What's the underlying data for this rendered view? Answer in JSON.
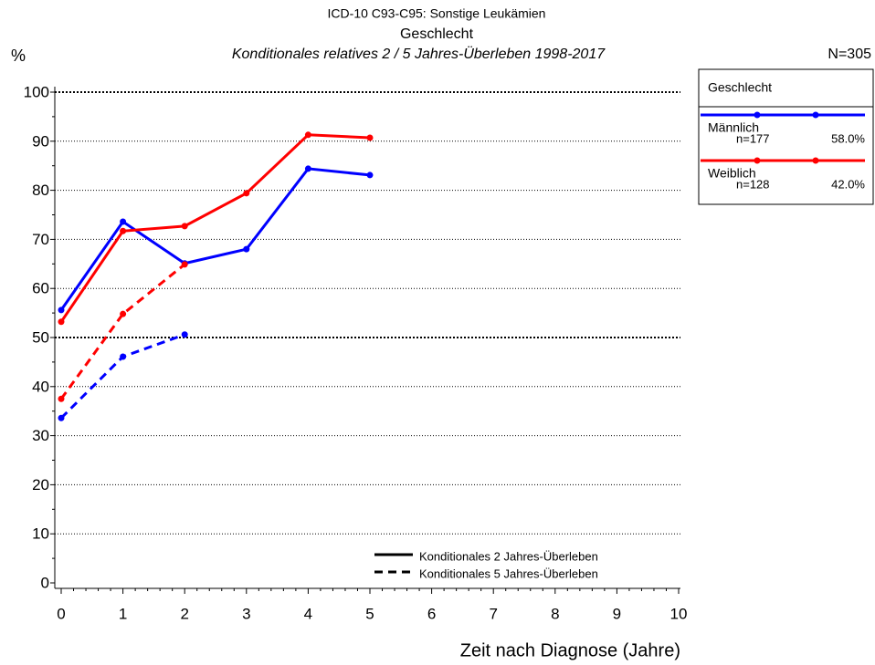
{
  "chart_data": {
    "type": "line",
    "title": "ICD-10 C93-C95: Sonstige Leukämien",
    "subtitle": "Geschlecht",
    "subtitle2": "Konditionales relatives 2 / 5 Jahres-Überleben 1998-2017",
    "y_label": "%",
    "total_label": "N=305",
    "x_label": "Zeit nach Diagnose (Jahre)",
    "legend_title": "Geschlecht",
    "x": [
      0,
      1,
      2,
      3,
      4,
      5
    ],
    "xlim": [
      0,
      10
    ],
    "xticks": [
      0,
      1,
      2,
      3,
      4,
      5,
      6,
      7,
      8,
      9,
      10
    ],
    "ylim": [
      0,
      100
    ],
    "yticks": [
      0,
      10,
      20,
      30,
      40,
      50,
      60,
      70,
      80,
      90,
      100
    ],
    "grid": true,
    "line_styles": [
      {
        "label": "Konditionales 2 Jahres-Überleben",
        "dashed": false
      },
      {
        "label": "Konditionales 5 Jahres-Überleben",
        "dashed": true
      }
    ],
    "series": [
      {
        "name": "Männlich",
        "color": "#0000ff",
        "n_label": "n=177",
        "share_label": "58.0%",
        "lines": [
          [
            55.6,
            73.6,
            65.1,
            68.0,
            84.4,
            83.1
          ],
          [
            33.6,
            46.1,
            50.6,
            null,
            null,
            null
          ]
        ]
      },
      {
        "name": "Weiblich",
        "color": "#ff0000",
        "n_label": "n=128",
        "share_label": "42.0%",
        "lines": [
          [
            53.2,
            71.7,
            72.7,
            79.4,
            91.3,
            90.7
          ],
          [
            37.5,
            54.8,
            64.9,
            null,
            null,
            null
          ]
        ]
      }
    ]
  }
}
